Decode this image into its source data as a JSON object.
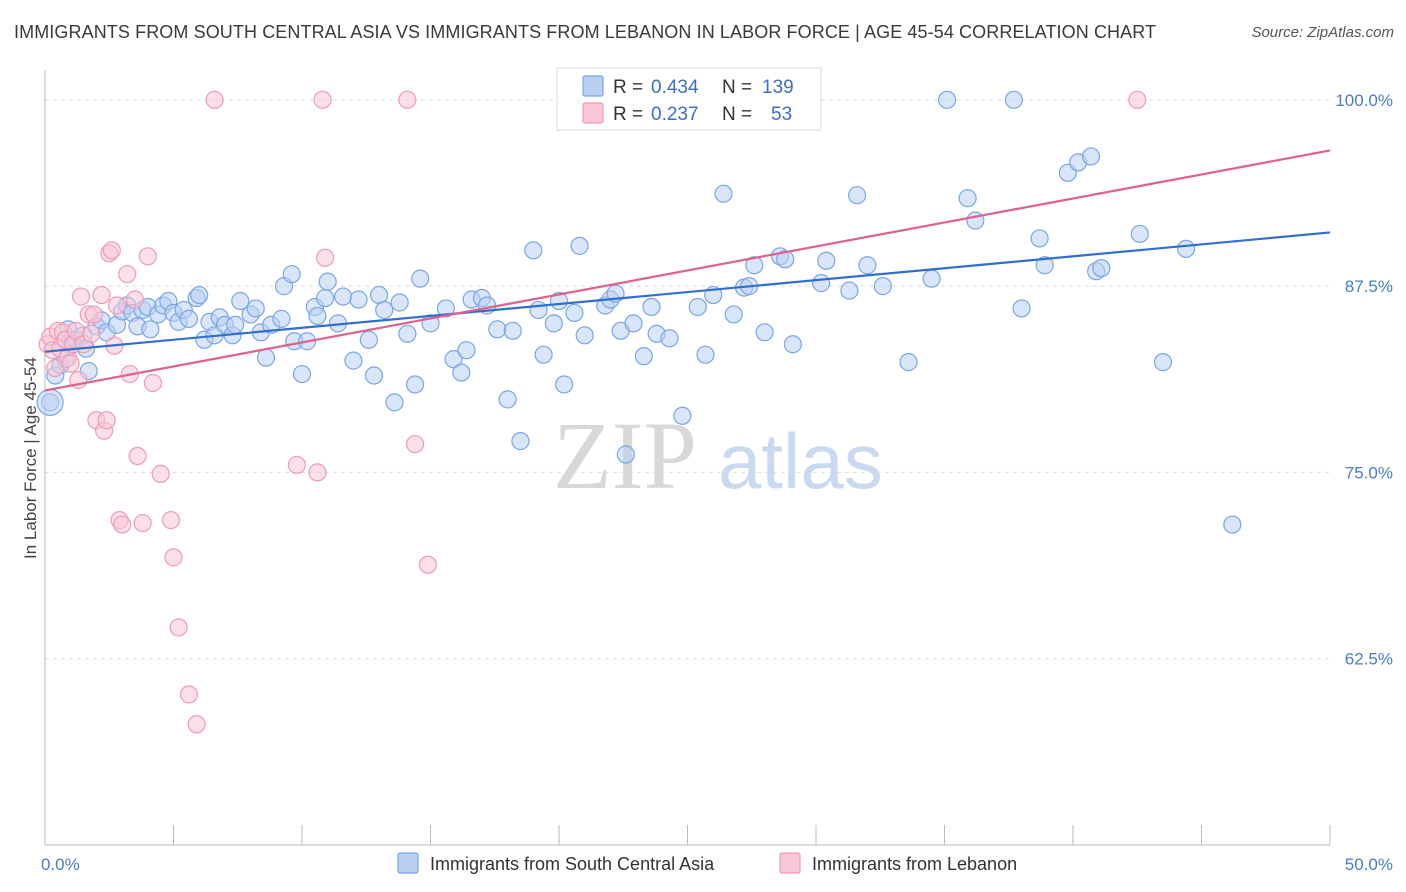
{
  "title": "IMMIGRANTS FROM SOUTH CENTRAL ASIA VS IMMIGRANTS FROM LEBANON IN LABOR FORCE | AGE 45-54 CORRELATION CHART",
  "source": "Source: ZipAtlas.com",
  "watermark": {
    "zip": "ZIP",
    "atlas": "atlas"
  },
  "legend": {
    "rows": [
      {
        "r_label": "R = ",
        "r_value": "0.434",
        "n_label": "N = ",
        "n_value": "139"
      },
      {
        "r_label": "R = ",
        "r_value": "0.237",
        "n_label": "N = ",
        "n_value": "53"
      }
    ]
  },
  "chart_data": {
    "type": "scatter",
    "xlabel": "",
    "ylabel": "In Labor Force | Age 45-54",
    "xlim": [
      0,
      50
    ],
    "ylim": [
      50,
      102
    ],
    "x_tick_labels": [
      {
        "value": 0,
        "label": "0.0%"
      },
      {
        "value": 50,
        "label": "50.0%"
      }
    ],
    "y_ticks": [
      {
        "value": 62.5,
        "label": "62.5%"
      },
      {
        "value": 75.0,
        "label": "75.0%"
      },
      {
        "value": 87.5,
        "label": "87.5%"
      },
      {
        "value": 100.0,
        "label": "100.0%"
      }
    ],
    "grid": "horizontal-dashed",
    "legend_position": "top-center",
    "series": [
      {
        "name": "Immigrants from South Central Asia",
        "color": "#7aa6e6",
        "fill": "#b9d0f3",
        "trend_color": "#2f6fcf",
        "trend": {
          "x0": 0,
          "y0": 83.1,
          "x1": 50,
          "y1": 91.1
        },
        "points": [
          [
            0.2,
            79.7
          ],
          [
            0.4,
            81.5
          ],
          [
            0.6,
            82.2
          ],
          [
            0.8,
            82.6
          ],
          [
            0.9,
            84.6
          ],
          [
            1.0,
            83.5
          ],
          [
            1.2,
            83.9
          ],
          [
            1.5,
            84.2
          ],
          [
            1.6,
            83.3
          ],
          [
            1.7,
            81.8
          ],
          [
            2.0,
            84.8
          ],
          [
            2.2,
            85.2
          ],
          [
            2.4,
            84.4
          ],
          [
            2.8,
            84.9
          ],
          [
            3.0,
            85.8
          ],
          [
            3.2,
            86.2
          ],
          [
            3.4,
            85.7
          ],
          [
            3.6,
            84.8
          ],
          [
            3.8,
            85.9
          ],
          [
            4.0,
            86.1
          ],
          [
            4.1,
            84.6
          ],
          [
            4.4,
            85.6
          ],
          [
            4.6,
            86.2
          ],
          [
            4.8,
            86.5
          ],
          [
            5.0,
            85.7
          ],
          [
            5.2,
            85.1
          ],
          [
            5.4,
            85.9
          ],
          [
            5.6,
            85.3
          ],
          [
            5.9,
            86.7
          ],
          [
            6.0,
            86.9
          ],
          [
            6.2,
            83.9
          ],
          [
            6.4,
            85.1
          ],
          [
            6.6,
            84.2
          ],
          [
            6.8,
            85.4
          ],
          [
            7.0,
            84.9
          ],
          [
            7.3,
            84.2
          ],
          [
            7.4,
            84.9
          ],
          [
            7.6,
            86.5
          ],
          [
            8.0,
            85.6
          ],
          [
            8.2,
            86.0
          ],
          [
            8.4,
            84.4
          ],
          [
            8.6,
            82.7
          ],
          [
            8.8,
            84.9
          ],
          [
            9.2,
            85.3
          ],
          [
            9.3,
            87.5
          ],
          [
            9.6,
            88.3
          ],
          [
            9.7,
            83.8
          ],
          [
            10.0,
            81.6
          ],
          [
            10.2,
            83.8
          ],
          [
            10.5,
            86.1
          ],
          [
            10.6,
            85.5
          ],
          [
            10.9,
            86.7
          ],
          [
            11.0,
            87.8
          ],
          [
            11.4,
            85.0
          ],
          [
            11.6,
            86.8
          ],
          [
            12.0,
            82.5
          ],
          [
            12.2,
            86.6
          ],
          [
            12.6,
            83.9
          ],
          [
            12.8,
            81.5
          ],
          [
            13.0,
            86.9
          ],
          [
            13.2,
            85.9
          ],
          [
            13.6,
            79.7
          ],
          [
            13.8,
            86.4
          ],
          [
            14.1,
            84.3
          ],
          [
            14.4,
            80.9
          ],
          [
            14.6,
            88.0
          ],
          [
            15.0,
            85.0
          ],
          [
            15.6,
            86.0
          ],
          [
            15.9,
            82.6
          ],
          [
            16.2,
            81.7
          ],
          [
            16.4,
            83.2
          ],
          [
            16.6,
            86.6
          ],
          [
            17.0,
            86.7
          ],
          [
            17.2,
            86.2
          ],
          [
            17.6,
            84.6
          ],
          [
            18.0,
            79.9
          ],
          [
            18.2,
            84.5
          ],
          [
            18.5,
            77.1
          ],
          [
            19.0,
            89.9
          ],
          [
            19.2,
            85.9
          ],
          [
            19.4,
            82.9
          ],
          [
            19.8,
            85.0
          ],
          [
            20.0,
            86.5
          ],
          [
            20.2,
            80.9
          ],
          [
            20.6,
            85.7
          ],
          [
            20.8,
            90.2
          ],
          [
            21.0,
            84.2
          ],
          [
            21.8,
            86.2
          ],
          [
            22.0,
            86.6
          ],
          [
            22.2,
            87.0
          ],
          [
            22.4,
            84.5
          ],
          [
            22.6,
            76.2
          ],
          [
            22.9,
            85.0
          ],
          [
            23.3,
            82.8
          ],
          [
            23.6,
            86.1
          ],
          [
            23.8,
            84.3
          ],
          [
            24.3,
            84.0
          ],
          [
            24.8,
            78.8
          ],
          [
            25.4,
            86.1
          ],
          [
            25.7,
            82.9
          ],
          [
            26.0,
            86.9
          ],
          [
            26.4,
            93.7
          ],
          [
            26.8,
            85.6
          ],
          [
            27.2,
            87.4
          ],
          [
            27.4,
            87.5
          ],
          [
            27.6,
            88.9
          ],
          [
            28.0,
            84.4
          ],
          [
            28.6,
            89.5
          ],
          [
            28.8,
            89.3
          ],
          [
            29.1,
            83.6
          ],
          [
            30.2,
            87.7
          ],
          [
            30.4,
            89.2
          ],
          [
            31.3,
            87.2
          ],
          [
            31.6,
            93.6
          ],
          [
            32.0,
            88.9
          ],
          [
            32.6,
            87.5
          ],
          [
            33.6,
            82.4
          ],
          [
            34.5,
            88.0
          ],
          [
            35.1,
            100.0
          ],
          [
            35.9,
            93.4
          ],
          [
            36.2,
            91.9
          ],
          [
            37.7,
            100.0
          ],
          [
            38.0,
            86.0
          ],
          [
            38.7,
            90.7
          ],
          [
            38.9,
            88.9
          ],
          [
            39.8,
            95.1
          ],
          [
            40.2,
            95.8
          ],
          [
            40.7,
            96.2
          ],
          [
            40.9,
            88.5
          ],
          [
            41.1,
            88.7
          ],
          [
            42.6,
            91.0
          ],
          [
            43.5,
            82.4
          ],
          [
            44.4,
            90.0
          ],
          [
            46.2,
            71.5
          ]
        ]
      },
      {
        "name": "Immigrants from Lebanon",
        "color": "#ef9bb8",
        "fill": "#f8c6d6",
        "trend_color": "#e0608a",
        "trend": {
          "x0": 0,
          "y0": 80.5,
          "x1": 50,
          "y1": 96.6
        },
        "points": [
          [
            0.1,
            83.6
          ],
          [
            0.2,
            84.1
          ],
          [
            0.3,
            83.2
          ],
          [
            0.4,
            82.0
          ],
          [
            0.5,
            84.5
          ],
          [
            0.6,
            83.3
          ],
          [
            0.7,
            84.4
          ],
          [
            0.8,
            83.9
          ],
          [
            0.9,
            82.7
          ],
          [
            1.0,
            82.3
          ],
          [
            1.1,
            83.6
          ],
          [
            1.2,
            84.5
          ],
          [
            1.3,
            81.2
          ],
          [
            1.4,
            86.8
          ],
          [
            1.5,
            83.6
          ],
          [
            1.7,
            85.6
          ],
          [
            1.8,
            84.3
          ],
          [
            1.9,
            85.6
          ],
          [
            2.0,
            78.5
          ],
          [
            2.2,
            86.9
          ],
          [
            2.3,
            77.8
          ],
          [
            2.4,
            78.5
          ],
          [
            2.5,
            89.7
          ],
          [
            2.6,
            89.9
          ],
          [
            2.7,
            83.5
          ],
          [
            2.8,
            86.2
          ],
          [
            2.9,
            71.8
          ],
          [
            3.0,
            71.5
          ],
          [
            3.2,
            88.3
          ],
          [
            3.3,
            81.6
          ],
          [
            3.5,
            86.6
          ],
          [
            3.6,
            76.1
          ],
          [
            3.8,
            71.6
          ],
          [
            4.0,
            89.5
          ],
          [
            4.2,
            81.0
          ],
          [
            4.5,
            74.9
          ],
          [
            4.9,
            71.8
          ],
          [
            5.0,
            69.3
          ],
          [
            5.2,
            64.6
          ],
          [
            5.6,
            60.1
          ],
          [
            5.9,
            58.1
          ],
          [
            6.6,
            100.0
          ],
          [
            9.8,
            75.5
          ],
          [
            10.6,
            75.0
          ],
          [
            10.8,
            100.0
          ],
          [
            10.9,
            89.4
          ],
          [
            14.1,
            100.0
          ],
          [
            14.4,
            76.9
          ],
          [
            14.9,
            68.8
          ],
          [
            42.5,
            100.0
          ]
        ]
      }
    ]
  }
}
